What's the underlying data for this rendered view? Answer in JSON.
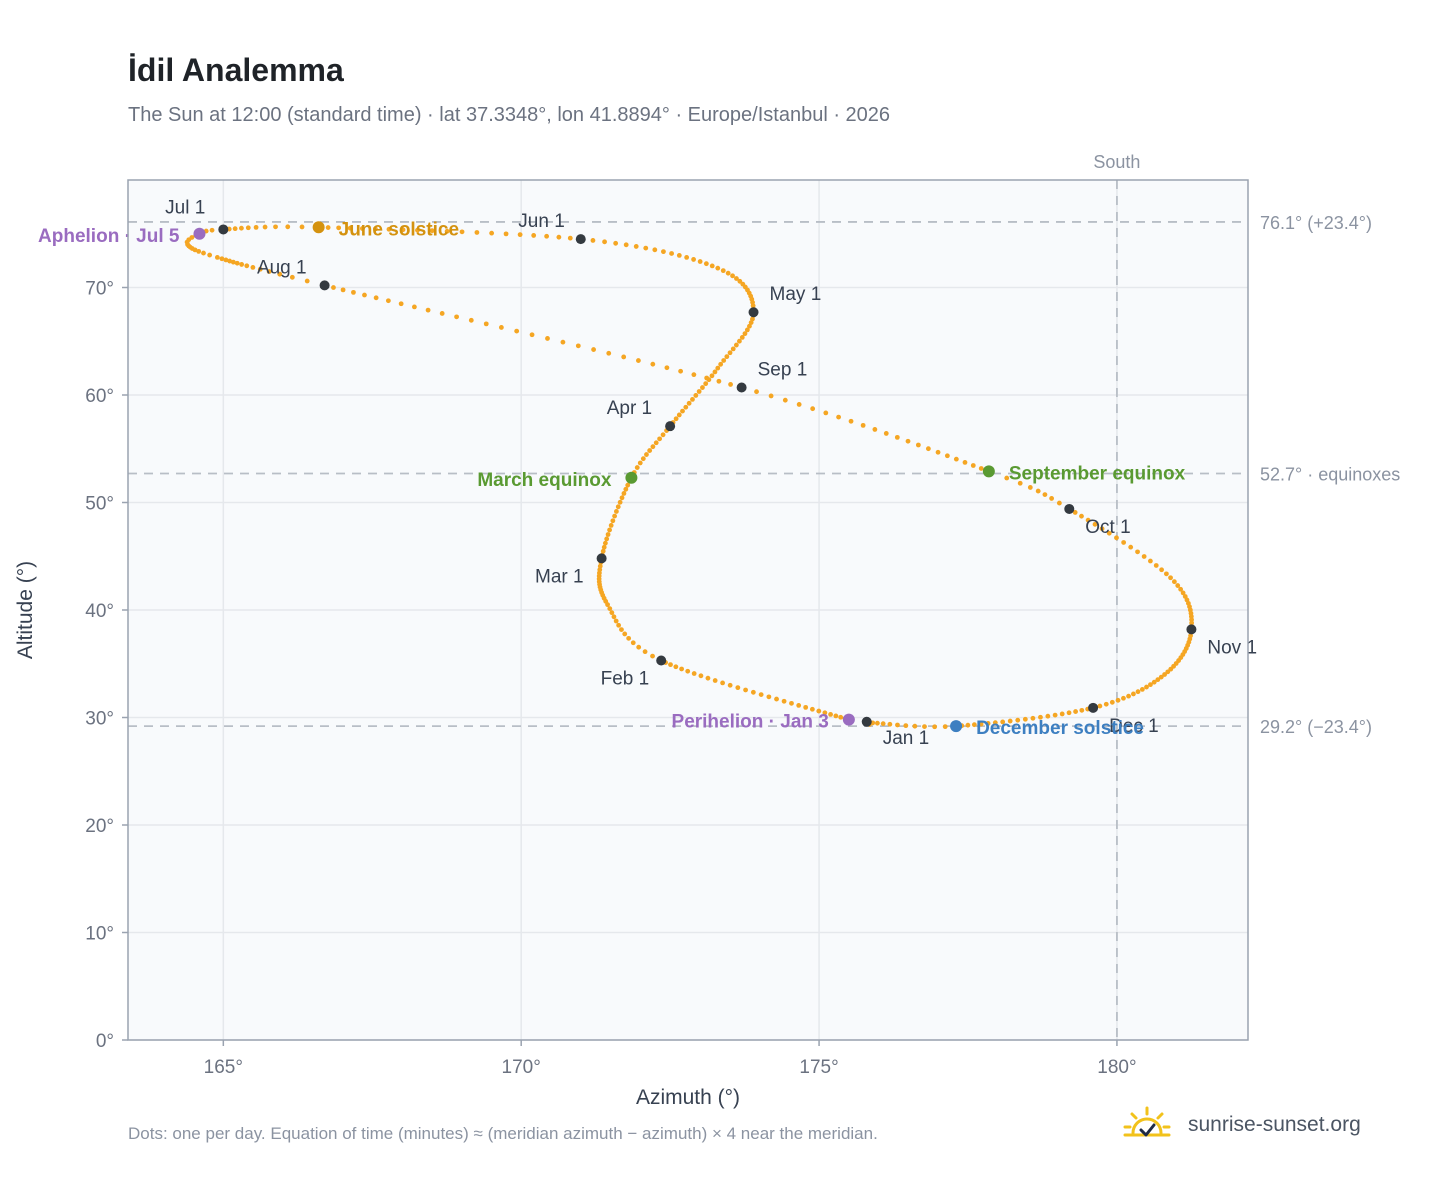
{
  "title": "İdil Analemma",
  "subtitle": "The Sun at 12:00 (standard time) · lat 37.3348°, lon 41.8894° · Europe/Istanbul · 2026",
  "footnote": "Dots: one per day. Equation of time (minutes) ≈ (meridian azimuth − azimuth) × 4 near the meridian.",
  "brand": {
    "text": "sunrise-sunset.org",
    "icon": "sun-checkmark-icon"
  },
  "colors": {
    "curve": "#f5a623",
    "month_marker": "#343a40",
    "solstice_june": "#d4920f",
    "solstice_december": "#3d7fc1",
    "equinox": "#5a9a32",
    "apsis": "#9a6cc0",
    "reference_line": "#b8bec6",
    "grid": "#e5e8ec",
    "plot_bg": "#f8fafc"
  },
  "chart_data": {
    "type": "scatter",
    "xlabel": "Azimuth (°)",
    "ylabel": "Altitude (°)",
    "xlim": [
      163.4,
      182.2
    ],
    "ylim": [
      0,
      80
    ],
    "xticks": [
      165,
      170,
      175,
      180
    ],
    "yticks": [
      0,
      10,
      20,
      30,
      40,
      50,
      60,
      70
    ],
    "xtick_labels": [
      "165°",
      "170°",
      "175°",
      "180°"
    ],
    "ytick_labels": [
      "0°",
      "10°",
      "20°",
      "30°",
      "40°",
      "50°",
      "60°",
      "70°"
    ],
    "grid": true,
    "series": [
      {
        "points_description_free": true,
        "anchors": [
          {
            "day": 1,
            "az": 175.8,
            "alt": 29.6
          },
          {
            "day": 3,
            "az": 175.5,
            "alt": 29.8
          },
          {
            "day": 32,
            "az": 172.35,
            "alt": 35.3
          },
          {
            "day": 45,
            "az": 171.45,
            "alt": 40.5
          },
          {
            "day": 60,
            "az": 171.35,
            "alt": 44.8
          },
          {
            "day": 79,
            "az": 171.85,
            "alt": 52.3
          },
          {
            "day": 91,
            "az": 172.5,
            "alt": 57.1
          },
          {
            "day": 106,
            "az": 173.3,
            "alt": 62.5
          },
          {
            "day": 121,
            "az": 173.9,
            "alt": 67.7
          },
          {
            "day": 136,
            "az": 173.3,
            "alt": 71.8
          },
          {
            "day": 152,
            "az": 171.0,
            "alt": 74.5
          },
          {
            "day": 172,
            "az": 166.6,
            "alt": 75.6
          },
          {
            "day": 182,
            "az": 165.0,
            "alt": 75.4
          },
          {
            "day": 186,
            "az": 164.6,
            "alt": 75.0
          },
          {
            "day": 191,
            "az": 164.4,
            "alt": 74.0
          },
          {
            "day": 199,
            "az": 164.9,
            "alt": 72.8
          },
          {
            "day": 213,
            "az": 166.7,
            "alt": 70.2
          },
          {
            "day": 244,
            "az": 173.7,
            "alt": 60.7
          },
          {
            "day": 266,
            "az": 177.85,
            "alt": 52.9
          },
          {
            "day": 274,
            "az": 179.2,
            "alt": 49.4
          },
          {
            "day": 290,
            "az": 180.9,
            "alt": 43.0
          },
          {
            "day": 305,
            "az": 181.25,
            "alt": 38.2
          },
          {
            "day": 320,
            "az": 180.8,
            "alt": 34.0
          },
          {
            "day": 335,
            "az": 179.6,
            "alt": 30.9
          },
          {
            "day": 355,
            "az": 177.3,
            "alt": 29.2
          },
          {
            "day": 365,
            "az": 175.9,
            "alt": 29.5
          }
        ]
      }
    ],
    "month_markers": [
      {
        "label": "Jan 1",
        "az": 175.8,
        "alt": 29.6
      },
      {
        "label": "Feb 1",
        "az": 172.35,
        "alt": 35.3
      },
      {
        "label": "Mar 1",
        "az": 171.35,
        "alt": 44.8
      },
      {
        "label": "Apr 1",
        "az": 172.5,
        "alt": 57.1
      },
      {
        "label": "May 1",
        "az": 173.9,
        "alt": 67.7
      },
      {
        "label": "Jun 1",
        "az": 171.0,
        "alt": 74.5
      },
      {
        "label": "Jul 1",
        "az": 165.0,
        "alt": 75.4
      },
      {
        "label": "Aug 1",
        "az": 166.7,
        "alt": 70.2
      },
      {
        "label": "Sep 1",
        "az": 173.7,
        "alt": 60.7
      },
      {
        "label": "Oct 1",
        "az": 179.2,
        "alt": 49.4
      },
      {
        "label": "Nov 1",
        "az": 181.25,
        "alt": 38.2
      },
      {
        "label": "Dec 1",
        "az": 179.6,
        "alt": 30.9
      }
    ],
    "events": [
      {
        "label": "June solstice",
        "az": 166.6,
        "alt": 75.6,
        "color_key": "solstice_june"
      },
      {
        "label": "December solstice",
        "az": 177.3,
        "alt": 29.2,
        "color_key": "solstice_december"
      },
      {
        "label": "March equinox",
        "az": 171.85,
        "alt": 52.3,
        "color_key": "equinox"
      },
      {
        "label": "September equinox",
        "az": 177.85,
        "alt": 52.9,
        "color_key": "equinox"
      },
      {
        "label": "Aphelion · Jul 5",
        "az": 164.6,
        "alt": 75.0,
        "color_key": "apsis"
      },
      {
        "label": "Perihelion · Jan 3",
        "az": 175.5,
        "alt": 29.8,
        "color_key": "apsis"
      }
    ],
    "reference_lines": [
      {
        "orientation": "horizontal",
        "value": 76.1,
        "label": "76.1° (+23.4°)"
      },
      {
        "orientation": "horizontal",
        "value": 52.7,
        "label": "52.7° · equinoxes"
      },
      {
        "orientation": "horizontal",
        "value": 29.2,
        "label": "29.2° (−23.4°)"
      },
      {
        "orientation": "vertical",
        "value": 180,
        "label": "South"
      }
    ]
  }
}
